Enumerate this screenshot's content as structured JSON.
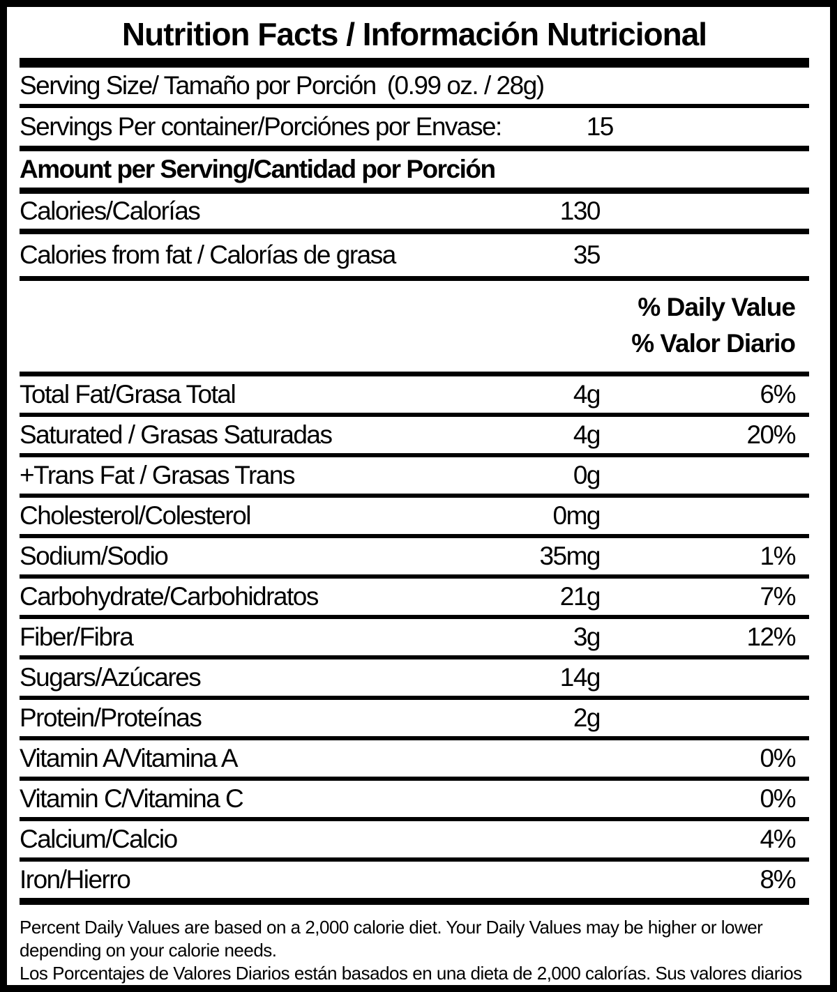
{
  "title": "Nutrition Facts / Información Nutricional",
  "serving_size": {
    "label": "Serving Size/ Tamaño por Porción",
    "value": "(0.99 oz. / 28g)"
  },
  "servings_per_container": {
    "label": "Servings Per container/Porciónes por Envase:",
    "value": "15"
  },
  "amount_per_serving": "Amount per Serving/Cantidad por Porción",
  "calories": {
    "label": "Calories/Calorías",
    "value": "130"
  },
  "calories_from_fat": {
    "label": "Calories from fat / Calorías de grasa",
    "value": "35"
  },
  "daily_value_header": {
    "line1": "% Daily Value",
    "line2": "% Valor Diario"
  },
  "nutrients": [
    {
      "label": "Total Fat/Grasa Total",
      "amount": "4g",
      "dv": "6%"
    },
    {
      "label": "Saturated / Grasas Saturadas",
      "amount": "4g",
      "dv": "20%"
    },
    {
      "label": "+Trans Fat / Grasas Trans",
      "amount": "0g",
      "dv": ""
    },
    {
      "label": "Cholesterol/Colesterol",
      "amount": "0mg",
      "dv": ""
    },
    {
      "label": "Sodium/Sodio",
      "amount": "35mg",
      "dv": "1%"
    },
    {
      "label": "Carbohydrate/Carbohidratos",
      "amount": "21g",
      "dv": "7%"
    },
    {
      "label": "Fiber/Fibra",
      "amount": "3g",
      "dv": "12%"
    },
    {
      "label": "Sugars/Azúcares",
      "amount": "14g",
      "dv": ""
    },
    {
      "label": "Protein/Proteínas",
      "amount": "2g",
      "dv": ""
    },
    {
      "label": "Vitamin A/Vitamina A",
      "amount": "",
      "dv": "0%"
    },
    {
      "label": "Vitamin C/Vitamina C",
      "amount": "",
      "dv": "0%"
    },
    {
      "label": "Calcium/Calcio",
      "amount": "",
      "dv": "4%"
    },
    {
      "label": "Iron/Hierro",
      "amount": "",
      "dv": "8%"
    }
  ],
  "footnotes": {
    "en": "Percent Daily Values are based on a 2,000 calorie diet. Your Daily Values may be higher or lower depending on your calorie needs.",
    "es": "Los Porcentajes de Valores Diarios están basados en una dieta de 2,000 calorías. Sus valores diarios pueden ser mayores o menores dependiendo de sus necesidades calóricas"
  },
  "colors": {
    "ink": "#000000",
    "background": "#ffffff"
  }
}
